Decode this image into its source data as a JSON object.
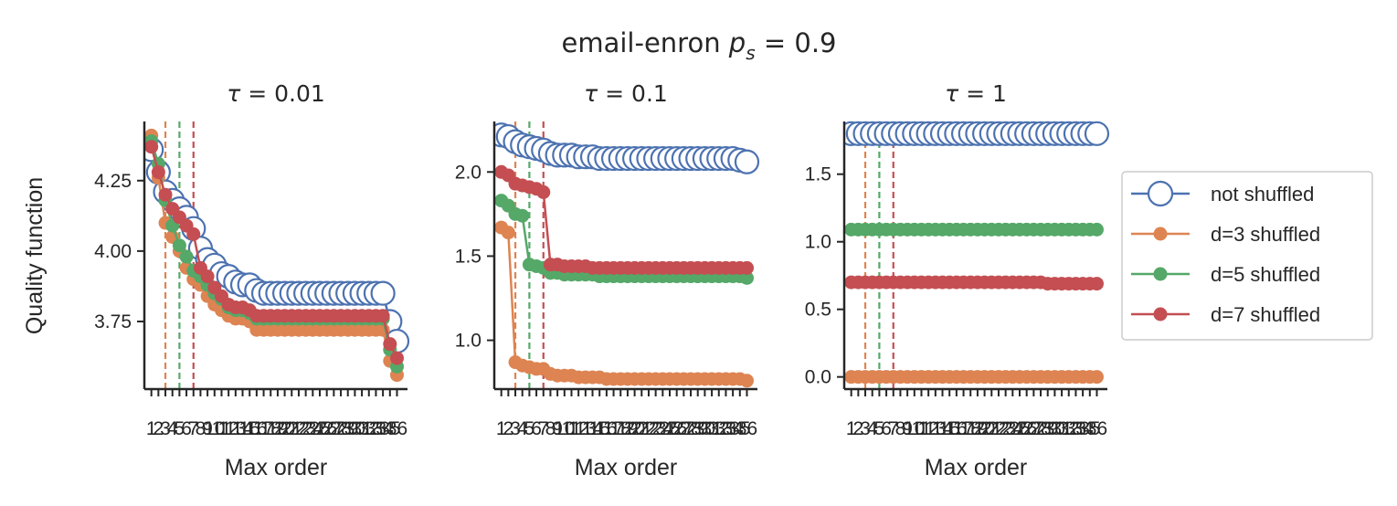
{
  "figure": {
    "suptitle_text": "email-enron ",
    "suptitle_math_var": "p",
    "suptitle_math_sub": "s",
    "suptitle_math_rest": " = 0.9",
    "ylabel": "Quality function",
    "xlabel": "Max order"
  },
  "legend": {
    "items": [
      {
        "label": "not shuffled",
        "color": "#4c72b0",
        "marker": "hollow-large"
      },
      {
        "label": "d=3 shuffled",
        "color": "#dd8452",
        "marker": "filled"
      },
      {
        "label": "d=5 shuffled",
        "color": "#55a868",
        "marker": "filled"
      },
      {
        "label": "d=7 shuffled",
        "color": "#c44e52",
        "marker": "filled"
      }
    ]
  },
  "chart_data": [
    {
      "type": "line",
      "title_var": "τ",
      "title_rest": " = 0.01",
      "xlabel": "Max order",
      "ylabel": "Quality function",
      "x": [
        1,
        2,
        3,
        4,
        5,
        6,
        7,
        8,
        9,
        10,
        11,
        12,
        13,
        14,
        15,
        16,
        17,
        18,
        19,
        20,
        21,
        22,
        23,
        24,
        25,
        26,
        27,
        28,
        29,
        30,
        31,
        32,
        33,
        34,
        35,
        36
      ],
      "xlim": [
        0,
        37.5
      ],
      "ylim": [
        3.51,
        4.46
      ],
      "yticks": [
        3.75,
        4.0,
        4.25
      ],
      "ytick_labels": [
        "3.75",
        "4.00",
        "4.25"
      ],
      "vlines": [
        {
          "x": 3,
          "color": "#dd8452"
        },
        {
          "x": 5,
          "color": "#55a868"
        },
        {
          "x": 7,
          "color": "#c44e52"
        }
      ],
      "series": [
        {
          "name": "not shuffled",
          "color": "#4c72b0",
          "values": [
            4.36,
            4.28,
            4.21,
            4.18,
            4.15,
            4.12,
            4.08,
            4.01,
            3.97,
            3.95,
            3.92,
            3.91,
            3.89,
            3.88,
            3.88,
            3.86,
            3.85,
            3.85,
            3.85,
            3.85,
            3.85,
            3.85,
            3.85,
            3.85,
            3.85,
            3.85,
            3.85,
            3.85,
            3.85,
            3.85,
            3.85,
            3.85,
            3.85,
            3.85,
            3.75,
            3.68
          ]
        },
        {
          "name": "d=3 shuffled",
          "color": "#dd8452",
          "values": [
            4.41,
            4.26,
            4.1,
            4.05,
            4.0,
            3.94,
            3.9,
            3.88,
            3.84,
            3.81,
            3.79,
            3.77,
            3.76,
            3.76,
            3.75,
            3.72,
            3.72,
            3.72,
            3.72,
            3.72,
            3.72,
            3.72,
            3.72,
            3.72,
            3.72,
            3.72,
            3.72,
            3.72,
            3.72,
            3.72,
            3.72,
            3.72,
            3.72,
            3.72,
            3.61,
            3.56
          ]
        },
        {
          "name": "d=5 shuffled",
          "color": "#55a868",
          "values": [
            4.39,
            4.31,
            4.18,
            4.09,
            4.02,
            3.98,
            3.93,
            3.91,
            3.88,
            3.85,
            3.83,
            3.8,
            3.79,
            3.79,
            3.78,
            3.76,
            3.76,
            3.76,
            3.76,
            3.76,
            3.76,
            3.76,
            3.76,
            3.76,
            3.76,
            3.76,
            3.76,
            3.76,
            3.76,
            3.76,
            3.76,
            3.76,
            3.76,
            3.76,
            3.65,
            3.59
          ]
        },
        {
          "name": "d=7 shuffled",
          "color": "#c44e52",
          "values": [
            4.37,
            4.28,
            4.2,
            4.15,
            4.12,
            4.09,
            4.06,
            3.94,
            3.91,
            3.87,
            3.84,
            3.81,
            3.8,
            3.8,
            3.79,
            3.77,
            3.77,
            3.77,
            3.77,
            3.77,
            3.77,
            3.77,
            3.77,
            3.77,
            3.77,
            3.77,
            3.77,
            3.77,
            3.77,
            3.77,
            3.77,
            3.77,
            3.77,
            3.77,
            3.67,
            3.62
          ]
        }
      ]
    },
    {
      "type": "line",
      "title_var": "τ",
      "title_rest": " = 0.1",
      "xlabel": "Max order",
      "x": [
        1,
        2,
        3,
        4,
        5,
        6,
        7,
        8,
        9,
        10,
        11,
        12,
        13,
        14,
        15,
        16,
        17,
        18,
        19,
        20,
        21,
        22,
        23,
        24,
        25,
        26,
        27,
        28,
        29,
        30,
        31,
        32,
        33,
        34,
        35,
        36
      ],
      "xlim": [
        0,
        37.5
      ],
      "ylim": [
        0.71,
        2.3
      ],
      "yticks": [
        1.0,
        1.5,
        2.0
      ],
      "ytick_labels": [
        "1.0",
        "1.5",
        "2.0"
      ],
      "vlines": [
        {
          "x": 3,
          "color": "#dd8452"
        },
        {
          "x": 5,
          "color": "#55a868"
        },
        {
          "x": 7,
          "color": "#c44e52"
        }
      ],
      "series": [
        {
          "name": "not shuffled",
          "color": "#4c72b0",
          "values": [
            2.22,
            2.21,
            2.18,
            2.16,
            2.15,
            2.14,
            2.13,
            2.11,
            2.1,
            2.1,
            2.1,
            2.09,
            2.09,
            2.09,
            2.08,
            2.08,
            2.08,
            2.08,
            2.08,
            2.08,
            2.08,
            2.08,
            2.08,
            2.08,
            2.08,
            2.08,
            2.08,
            2.08,
            2.08,
            2.08,
            2.08,
            2.08,
            2.08,
            2.08,
            2.07,
            2.06
          ]
        },
        {
          "name": "d=3 shuffled",
          "color": "#dd8452",
          "values": [
            1.67,
            1.64,
            0.87,
            0.85,
            0.84,
            0.83,
            0.83,
            0.8,
            0.79,
            0.79,
            0.79,
            0.78,
            0.78,
            0.78,
            0.78,
            0.77,
            0.77,
            0.77,
            0.77,
            0.77,
            0.77,
            0.77,
            0.77,
            0.77,
            0.77,
            0.77,
            0.77,
            0.77,
            0.77,
            0.77,
            0.77,
            0.77,
            0.77,
            0.77,
            0.77,
            0.76
          ]
        },
        {
          "name": "d=5 shuffled",
          "color": "#55a868",
          "values": [
            1.83,
            1.8,
            1.75,
            1.74,
            1.45,
            1.44,
            1.43,
            1.4,
            1.4,
            1.39,
            1.39,
            1.39,
            1.39,
            1.39,
            1.38,
            1.38,
            1.38,
            1.38,
            1.38,
            1.38,
            1.38,
            1.38,
            1.38,
            1.38,
            1.38,
            1.38,
            1.38,
            1.38,
            1.38,
            1.38,
            1.38,
            1.38,
            1.38,
            1.38,
            1.38,
            1.37
          ]
        },
        {
          "name": "d=7 shuffled",
          "color": "#c44e52",
          "values": [
            2.0,
            1.98,
            1.93,
            1.92,
            1.91,
            1.9,
            1.88,
            1.45,
            1.45,
            1.44,
            1.44,
            1.44,
            1.44,
            1.43,
            1.43,
            1.43,
            1.43,
            1.43,
            1.43,
            1.43,
            1.43,
            1.43,
            1.43,
            1.43,
            1.43,
            1.43,
            1.43,
            1.43,
            1.43,
            1.43,
            1.43,
            1.43,
            1.43,
            1.43,
            1.43,
            1.43
          ]
        }
      ]
    },
    {
      "type": "line",
      "title_var": "τ",
      "title_rest": " = 1",
      "xlabel": "Max order",
      "x": [
        1,
        2,
        3,
        4,
        5,
        6,
        7,
        8,
        9,
        10,
        11,
        12,
        13,
        14,
        15,
        16,
        17,
        18,
        19,
        20,
        21,
        22,
        23,
        24,
        25,
        26,
        27,
        28,
        29,
        30,
        31,
        32,
        33,
        34,
        35,
        36
      ],
      "xlim": [
        0,
        37.5
      ],
      "ylim": [
        -0.09,
        1.89
      ],
      "yticks": [
        0.0,
        0.5,
        1.0,
        1.5
      ],
      "ytick_labels": [
        "0.0",
        "0.5",
        "1.0",
        "1.5"
      ],
      "vlines": [
        {
          "x": 3,
          "color": "#dd8452"
        },
        {
          "x": 5,
          "color": "#55a868"
        },
        {
          "x": 7,
          "color": "#c44e52"
        }
      ],
      "series": [
        {
          "name": "not shuffled",
          "color": "#4c72b0",
          "values": [
            1.8,
            1.8,
            1.8,
            1.8,
            1.8,
            1.8,
            1.8,
            1.8,
            1.8,
            1.8,
            1.8,
            1.8,
            1.8,
            1.8,
            1.8,
            1.8,
            1.8,
            1.8,
            1.8,
            1.8,
            1.8,
            1.8,
            1.8,
            1.8,
            1.8,
            1.8,
            1.8,
            1.8,
            1.8,
            1.8,
            1.8,
            1.8,
            1.8,
            1.8,
            1.8,
            1.8
          ]
        },
        {
          "name": "d=3 shuffled",
          "color": "#dd8452",
          "values": [
            0.0,
            0.0,
            0.0,
            0.0,
            0.0,
            0.0,
            0.0,
            0.0,
            0.0,
            0.0,
            0.0,
            0.0,
            0.0,
            0.0,
            0.0,
            0.0,
            0.0,
            0.0,
            0.0,
            0.0,
            0.0,
            0.0,
            0.0,
            0.0,
            0.0,
            0.0,
            0.0,
            0.0,
            0.0,
            0.0,
            0.0,
            0.0,
            0.0,
            0.0,
            0.0,
            0.0
          ]
        },
        {
          "name": "d=5 shuffled",
          "color": "#55a868",
          "values": [
            1.09,
            1.09,
            1.09,
            1.09,
            1.09,
            1.09,
            1.09,
            1.09,
            1.09,
            1.09,
            1.09,
            1.09,
            1.09,
            1.09,
            1.09,
            1.09,
            1.09,
            1.09,
            1.09,
            1.09,
            1.09,
            1.09,
            1.09,
            1.09,
            1.09,
            1.09,
            1.09,
            1.09,
            1.09,
            1.09,
            1.09,
            1.09,
            1.09,
            1.09,
            1.09,
            1.09
          ]
        },
        {
          "name": "d=7 shuffled",
          "color": "#c44e52",
          "values": [
            0.7,
            0.7,
            0.7,
            0.7,
            0.7,
            0.7,
            0.7,
            0.7,
            0.7,
            0.7,
            0.7,
            0.7,
            0.7,
            0.7,
            0.7,
            0.7,
            0.7,
            0.7,
            0.7,
            0.7,
            0.7,
            0.7,
            0.7,
            0.7,
            0.7,
            0.7,
            0.7,
            0.7,
            0.69,
            0.69,
            0.69,
            0.69,
            0.69,
            0.69,
            0.69,
            0.69
          ]
        }
      ]
    }
  ]
}
